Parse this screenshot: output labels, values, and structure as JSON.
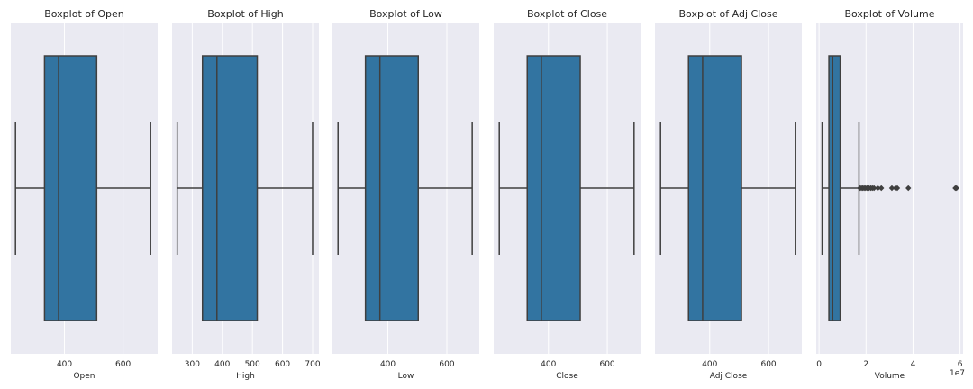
{
  "chart_data": [
    {
      "type": "boxplot",
      "title": "Boxplot of Open",
      "xlabel": "Open",
      "xlim": [
        217,
        718
      ],
      "xticks": [
        400,
        600
      ],
      "tick_labels": [
        "400",
        "600"
      ],
      "offset_label": "",
      "whisker_low": 233,
      "q1": 332,
      "median": 380,
      "q3": 510,
      "whisker_high": 694,
      "outliers": [],
      "color": "#3274a1",
      "grid": true
    },
    {
      "type": "boxplot",
      "title": "Boxplot of High",
      "xlabel": "High",
      "xlim": [
        233,
        721
      ],
      "xticks": [
        300,
        400,
        500,
        600,
        700
      ],
      "tick_labels": [
        "300",
        "400",
        "500",
        "600",
        "700"
      ],
      "offset_label": "",
      "whisker_low": 250,
      "q1": 334,
      "median": 382,
      "q3": 516,
      "whisker_high": 700,
      "outliers": [],
      "color": "#3274a1",
      "grid": true
    },
    {
      "type": "boxplot",
      "title": "Boxplot of Low",
      "xlabel": "Low",
      "xlim": [
        212,
        710
      ],
      "xticks": [
        400,
        600
      ],
      "tick_labels": [
        "400",
        "600"
      ],
      "offset_label": "",
      "whisker_low": 231,
      "q1": 324,
      "median": 373,
      "q3": 503,
      "whisker_high": 686,
      "outliers": [],
      "color": "#3274a1",
      "grid": true
    },
    {
      "type": "boxplot",
      "title": "Boxplot of Close",
      "xlabel": "Close",
      "xlim": [
        214,
        713
      ],
      "xticks": [
        400,
        600
      ],
      "tick_labels": [
        "400",
        "600"
      ],
      "offset_label": "",
      "whisker_low": 233,
      "q1": 328,
      "median": 376,
      "q3": 508,
      "whisker_high": 691,
      "outliers": [],
      "color": "#3274a1",
      "grid": true
    },
    {
      "type": "boxplot",
      "title": "Boxplot of Adj Close",
      "xlabel": "Adj Close",
      "xlim": [
        214,
        713
      ],
      "xticks": [
        400,
        600
      ],
      "tick_labels": [
        "400",
        "600"
      ],
      "offset_label": "",
      "whisker_low": 233,
      "q1": 328,
      "median": 376,
      "q3": 508,
      "whisker_high": 691,
      "outliers": [],
      "color": "#3274a1",
      "grid": true
    },
    {
      "type": "boxplot",
      "title": "Boxplot of Volume",
      "xlabel": "Volume",
      "xlim": [
        -1200000,
        61300000
      ],
      "xticks": [
        0,
        20000000,
        40000000,
        60000000
      ],
      "tick_labels": [
        "0",
        "2",
        "4",
        "6"
      ],
      "offset_label": "1e7",
      "whisker_low": 1300000,
      "q1": 4200000,
      "median": 5800000,
      "q3": 9000000,
      "whisker_high": 17000000,
      "outliers": [
        17400000,
        18000000,
        18600000,
        19200000,
        19800000,
        20500000,
        21200000,
        22000000,
        22700000,
        23400000,
        25000000,
        26500000,
        31000000,
        32600000,
        33300000,
        38000000,
        58000000,
        58500000
      ],
      "color": "#3274a1",
      "grid": true
    }
  ]
}
